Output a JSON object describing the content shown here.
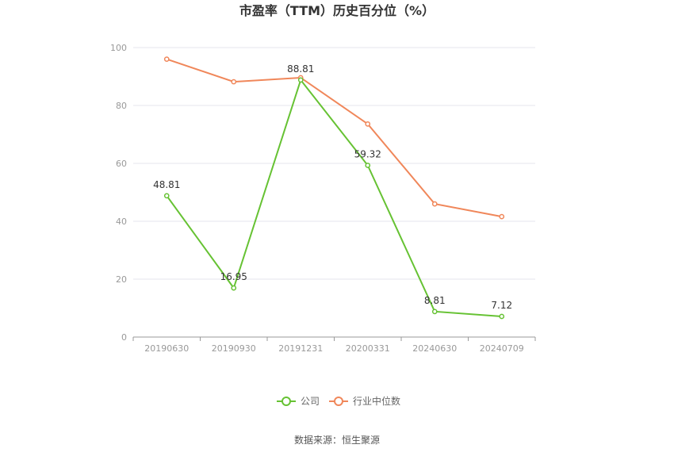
{
  "chart_data": {
    "type": "line",
    "title": "市盈率（TTM）历史百分位（%）",
    "categories": [
      "20190630",
      "20190930",
      "20191231",
      "20200331",
      "20240630",
      "20240709"
    ],
    "ylim": [
      0,
      100
    ],
    "yticks": [
      "0",
      "20",
      "40",
      "60",
      "80",
      "100"
    ],
    "grid": true,
    "legend_position": "bottom",
    "series": [
      {
        "name": "公司",
        "color": "#66c233",
        "values": [
          48.81,
          16.95,
          88.81,
          59.32,
          8.81,
          7.12
        ],
        "labels": [
          "48.81",
          "16.95",
          "88.81",
          "59.32",
          "8.81",
          "7.12"
        ]
      },
      {
        "name": "行业中位数",
        "color": "#f0875a",
        "values": [
          96.0,
          88.2,
          89.6,
          73.6,
          46.0,
          41.6
        ]
      }
    ],
    "source": "数据来源：恒生聚源"
  }
}
